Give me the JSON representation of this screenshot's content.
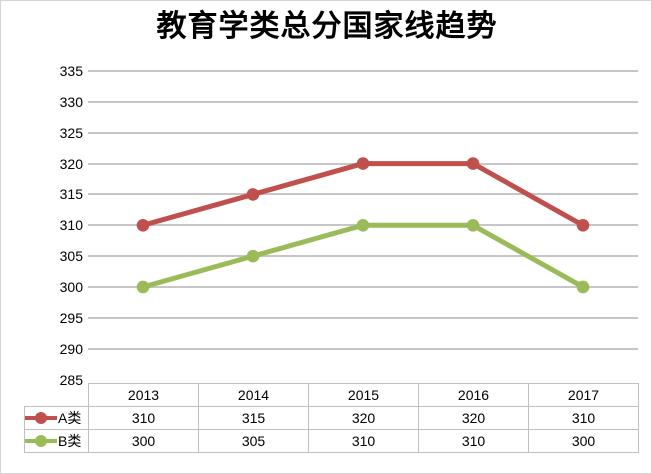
{
  "title": "教育学类总分国家线趋势",
  "colors": {
    "series_a": "#c0504d",
    "series_b": "#9bbb59",
    "gridline": "#c6c6c6",
    "table_border": "#bfbfbf",
    "frame_border": "#d4d4d4",
    "text": "#000000"
  },
  "chart_data": {
    "type": "line",
    "title": "教育学类总分国家线趋势",
    "categories": [
      "2013",
      "2014",
      "2015",
      "2016",
      "2017"
    ],
    "series": [
      {
        "name": "A类",
        "color": "#c0504d",
        "values": [
          310,
          315,
          320,
          320,
          310
        ]
      },
      {
        "name": "B类",
        "color": "#9bbb59",
        "values": [
          300,
          305,
          310,
          310,
          300
        ]
      }
    ],
    "xlabel": "",
    "ylabel": "",
    "ylim": [
      285,
      335
    ],
    "ytick_step": 5,
    "yticks": [
      335,
      330,
      325,
      320,
      315,
      310,
      305,
      300,
      295,
      290,
      285
    ],
    "grid": true,
    "legend_position": "data-table-left",
    "marker": "circle"
  }
}
